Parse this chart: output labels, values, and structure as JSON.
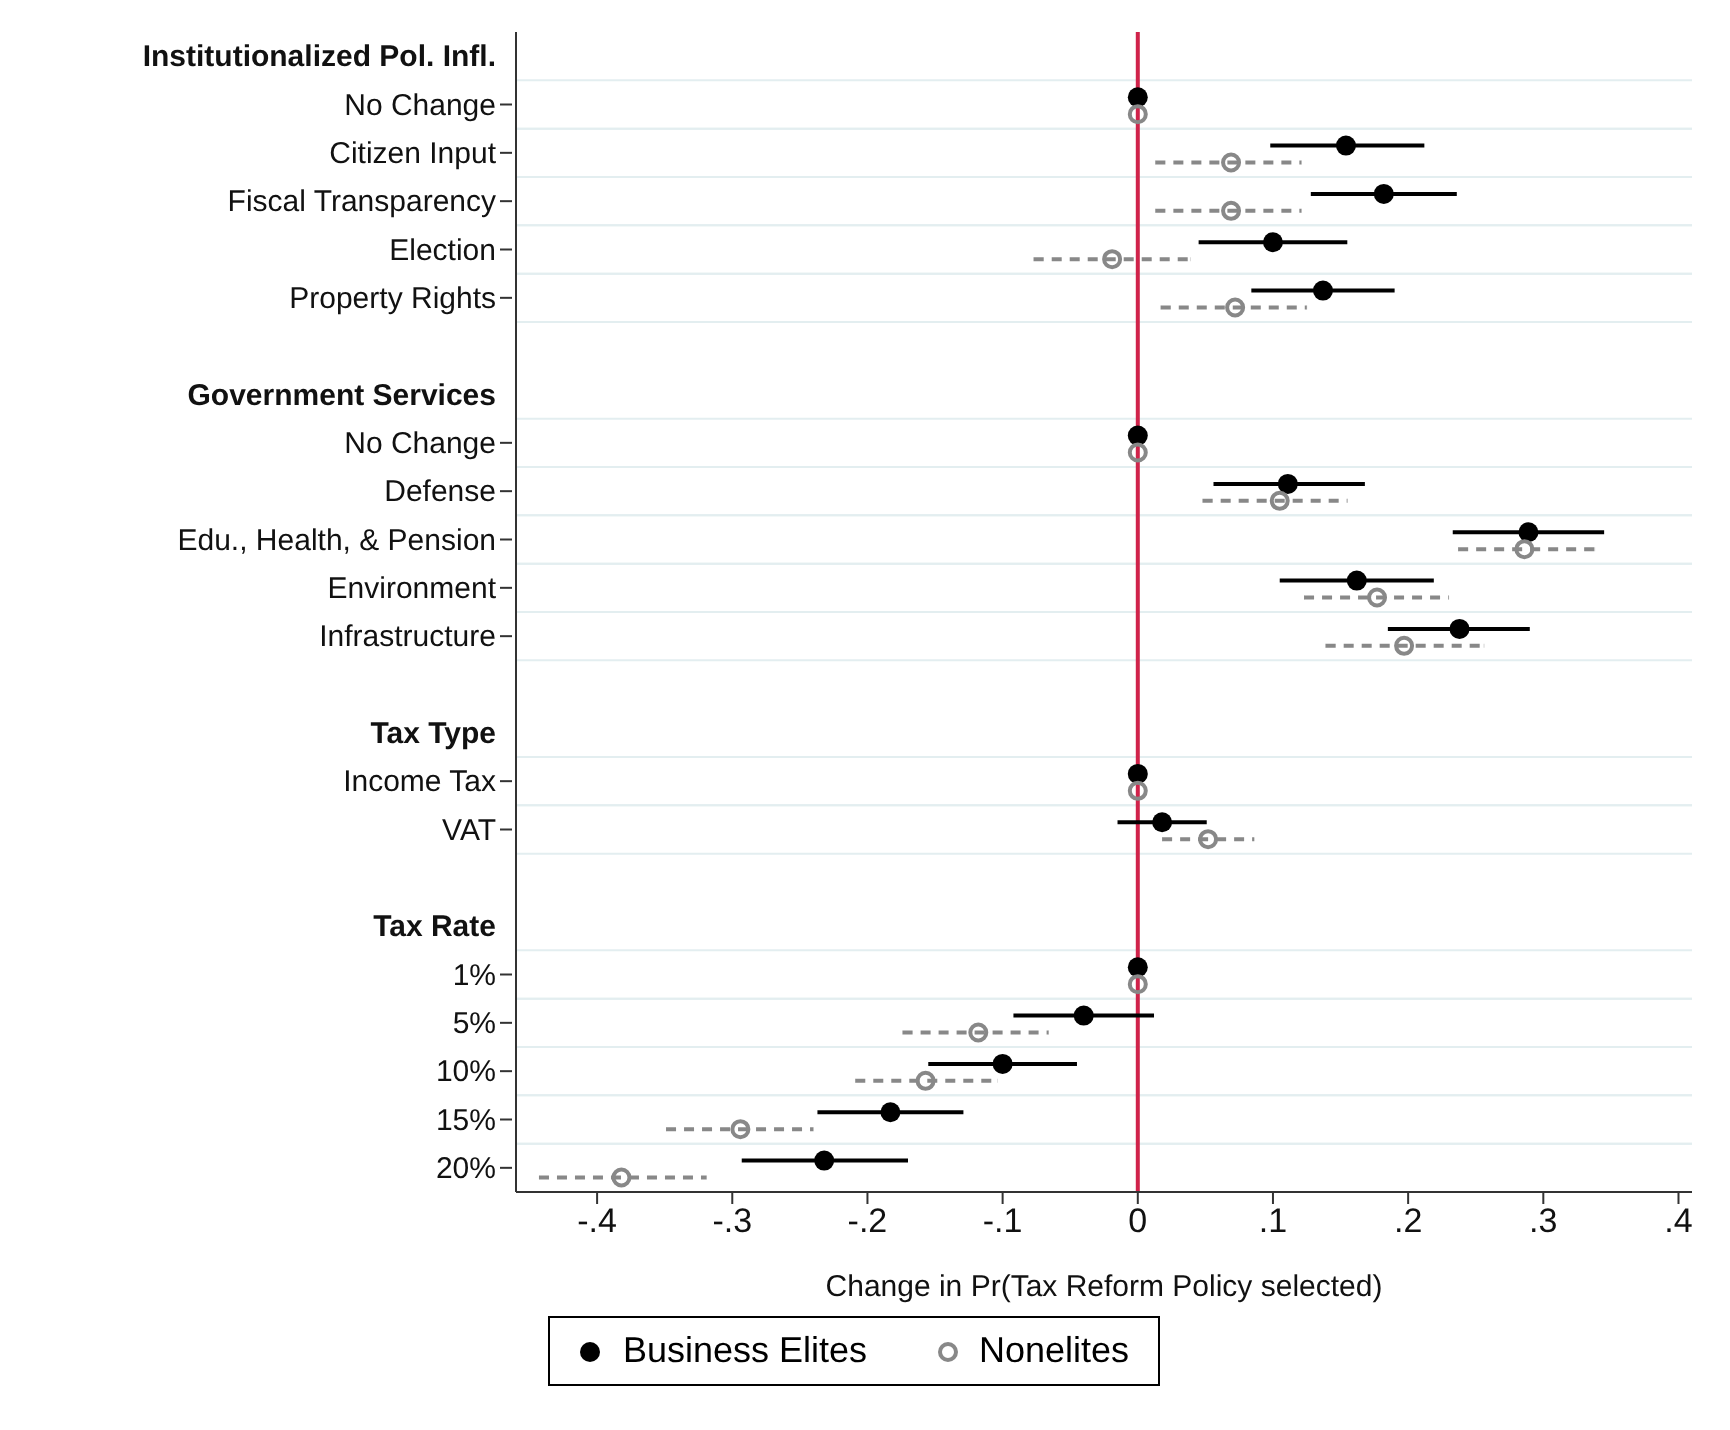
{
  "chart_data": {
    "type": "scatter",
    "orientation": "horizontal",
    "xlabel": "Change in Pr(Tax Reform Policy selected)",
    "categories": [
      "Institutionalized Pol. Infl.",
      "No Change",
      "Citizen Input",
      "Fiscal Transparency",
      "Election",
      "Property Rights",
      null,
      "Government Services",
      "No Change",
      "Defense",
      "Edu., Health, & Pension",
      "Environment",
      "Infrastructure",
      null,
      "Tax Type",
      "Income Tax",
      "VAT",
      null,
      "Tax Rate",
      "1%",
      "5%",
      "10%",
      "15%",
      "20%"
    ],
    "series": [
      {
        "name": "Business Elites",
        "color": "#000000",
        "line_style": "solid",
        "values": [
          null,
          0,
          0.154,
          0.182,
          0.1,
          0.137,
          null,
          null,
          0,
          0.111,
          0.289,
          0.162,
          0.238,
          null,
          null,
          0,
          0.018,
          null,
          null,
          0,
          -0.04,
          -0.1,
          -0.183,
          -0.232
        ],
        "errors": [
          null,
          null,
          [
            0.098,
            0.212
          ],
          [
            0.128,
            0.236
          ],
          [
            0.045,
            0.155
          ],
          [
            0.084,
            0.19
          ],
          null,
          null,
          null,
          [
            0.056,
            0.168
          ],
          [
            0.233,
            0.345
          ],
          [
            0.105,
            0.219
          ],
          [
            0.185,
            0.29
          ],
          null,
          null,
          null,
          [
            -0.015,
            0.051
          ],
          null,
          null,
          null,
          [
            -0.092,
            0.012
          ],
          [
            -0.155,
            -0.045
          ],
          [
            -0.237,
            -0.129
          ],
          [
            -0.293,
            -0.17
          ]
        ]
      },
      {
        "name": "Nonelites",
        "color": "#888888",
        "line_style": "dashed",
        "values": [
          null,
          0,
          0.069,
          0.069,
          -0.019,
          0.072,
          null,
          null,
          0,
          0.105,
          0.286,
          0.177,
          0.197,
          null,
          null,
          0,
          0.052,
          null,
          null,
          0,
          -0.118,
          -0.157,
          -0.294,
          -0.382
        ],
        "errors": [
          null,
          null,
          [
            0.013,
            0.121
          ],
          [
            0.013,
            0.121
          ],
          [
            -0.077,
            0.039
          ],
          [
            0.017,
            0.125
          ],
          null,
          null,
          null,
          [
            0.048,
            0.155
          ],
          [
            0.237,
            0.338
          ],
          [
            0.123,
            0.23
          ],
          [
            0.139,
            0.256
          ],
          null,
          null,
          null,
          [
            0.018,
            0.086
          ],
          null,
          null,
          null,
          [
            -0.174,
            -0.066
          ],
          [
            -0.209,
            -0.104
          ],
          [
            -0.349,
            -0.24
          ],
          [
            -0.443,
            -0.319
          ]
        ]
      }
    ],
    "xlim": [
      -0.46,
      0.41
    ],
    "xticks": [
      {
        "value": -0.4,
        "label": "-.4"
      },
      {
        "value": -0.3,
        "label": "-.3"
      },
      {
        "value": -0.2,
        "label": "-.2"
      },
      {
        "value": -0.1,
        "label": "-.1"
      },
      0,
      {
        "value": 0.1,
        "label": ".1"
      },
      {
        "value": 0.2,
        "label": ".2"
      },
      {
        "value": 0.3,
        "label": ".3"
      },
      {
        "value": 0.4,
        "label": ".4"
      }
    ],
    "ref_lines": [
      {
        "axis": "x",
        "value": 0,
        "color": "#d0234a"
      }
    ],
    "grid": "y",
    "legend": "bottom",
    "marker": "circle"
  }
}
